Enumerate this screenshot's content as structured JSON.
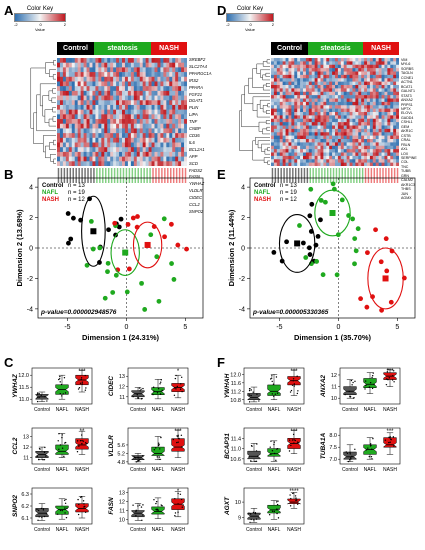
{
  "panels": {
    "A": "A",
    "B": "B",
    "C": "C",
    "D": "D",
    "E": "E",
    "F": "F"
  },
  "color_key": {
    "title": "Color Key",
    "xlabel": "Value",
    "ticks": [
      "-2",
      "0",
      "2"
    ],
    "colors": {
      "low": "#2e6fb0",
      "mid": "#f4f4f4",
      "high": "#c0181f"
    }
  },
  "groups": {
    "control": "Control",
    "steatosis": "steatosis",
    "nash": "NASH"
  },
  "group_colors": {
    "control": "#000000",
    "steatosis": "#1fa91f",
    "nash": "#e01010"
  },
  "heatmap_A": {
    "genes": [
      "SREBF2",
      "SLC27A4",
      "PPARGC1A",
      "IRS2",
      "PPARA",
      "FGF21",
      "DGAT1",
      "PLIN",
      "LIPA",
      "TNF",
      "CNBP",
      "CD36",
      "IL6",
      "BCL2A1",
      "APP",
      "SCD",
      "FADS2",
      "FASN",
      "YWHAZ",
      "VLDLR",
      "CIDEC",
      "CCL2",
      "SNPO2"
    ]
  },
  "heatmap_D": {
    "genes": [
      "VIM",
      "MYL6",
      "SORBS",
      "TAGLN",
      "CCNE1",
      "ACTN1",
      "BCAT1",
      "GALNT1",
      "STAT3",
      "ANXA2",
      "PRPS1",
      "NPTX",
      "ELOVL",
      "GADD4",
      "CSHL1",
      "GEM",
      "AKR1C",
      "CSTB",
      "CRAL",
      "FBLN",
      "AXL",
      "LOX",
      "SERPINE",
      "COL",
      "TNC",
      "TUBB",
      "GRN",
      "CALM2",
      "AKR1C3",
      "THBS",
      "JUN",
      "AGMX"
    ]
  },
  "pca_B": {
    "xlabel": "Dimension 1 (24.31%)",
    "ylabel": "Dimension 2 (13.68%)",
    "xticks": [
      "-5",
      "0",
      "5"
    ],
    "yticks": [
      "-4",
      "-2",
      "0",
      "2",
      "4"
    ],
    "legend": [
      {
        "label": "Control",
        "n": "n = 13"
      },
      {
        "label": "NAFL",
        "n": "n = 19"
      },
      {
        "label": "NASH",
        "n": "n = 12"
      }
    ],
    "pvalue": "p-value=0.000002948576"
  },
  "pca_E": {
    "xlabel": "Dimension 1 (35.70%)",
    "ylabel": "Dimension 2 (11.44%)",
    "xticks": [
      "-5",
      "0",
      "5"
    ],
    "yticks": [
      "-4",
      "-2",
      "0",
      "2",
      "4"
    ],
    "legend": [
      {
        "label": "Control",
        "n": "n = 13"
      },
      {
        "label": "NAFL",
        "n": "n = 19"
      },
      {
        "label": "NASH",
        "n": "n = 12"
      }
    ],
    "pvalue": "p-value=0.000005330365"
  },
  "box_groups": [
    "Control",
    "NAFL",
    "NASH"
  ],
  "boxplots_C": [
    {
      "gene": "YWHAZ",
      "yticks": [
        "11.0",
        "11.5",
        "12.0"
      ],
      "yrange": [
        10.8,
        12.3
      ],
      "sig": [
        "",
        "",
        "***"
      ],
      "stats": [
        [
          10.9,
          11.0,
          11.1,
          11.2,
          11.3
        ],
        [
          11.0,
          11.2,
          11.4,
          11.6,
          12.0
        ],
        [
          11.3,
          11.6,
          11.8,
          12.0,
          12.2
        ]
      ]
    },
    {
      "gene": "CIDEC",
      "yticks": [
        "11",
        "12",
        "13"
      ],
      "yrange": [
        10.3,
        13.8
      ],
      "sig": [
        "",
        "",
        "*"
      ],
      "stats": [
        [
          10.8,
          11.0,
          11.3,
          11.6,
          11.9
        ],
        [
          10.8,
          11.2,
          11.5,
          11.9,
          12.7
        ],
        [
          10.9,
          11.5,
          11.9,
          12.3,
          13.1
        ]
      ]
    },
    {
      "gene": "CCL2",
      "yticks": [
        "11",
        "12",
        "13"
      ],
      "yrange": [
        10.4,
        13.8
      ],
      "sig": [
        "",
        "",
        "**"
      ],
      "stats": [
        [
          10.8,
          11.0,
          11.3,
          11.6,
          12.0
        ],
        [
          11.0,
          11.3,
          11.6,
          12.2,
          13.3
        ],
        [
          11.3,
          11.8,
          12.2,
          12.8,
          13.5
        ]
      ]
    },
    {
      "gene": "VLDLR",
      "yticks": [
        "4.8",
        "5.2",
        "5.6"
      ],
      "yrange": [
        4.7,
        6.4
      ],
      "sig": [
        "",
        "",
        "***"
      ],
      "stats": [
        [
          4.8,
          4.9,
          5.0,
          5.1,
          5.2
        ],
        [
          4.9,
          5.1,
          5.2,
          5.5,
          6.0
        ],
        [
          5.0,
          5.3,
          5.5,
          5.9,
          6.3
        ]
      ]
    },
    {
      "gene": "SNPO2",
      "yticks": [
        "6.1",
        "6.2",
        "6.3"
      ],
      "yrange": [
        6.05,
        6.35
      ],
      "sig": [
        "",
        "",
        ""
      ],
      "stats": [
        [
          6.08,
          6.11,
          6.14,
          6.18,
          6.22
        ],
        [
          6.09,
          6.13,
          6.17,
          6.2,
          6.26
        ],
        [
          6.1,
          6.15,
          6.18,
          6.22,
          6.28
        ]
      ]
    },
    {
      "gene": "FASN",
      "yticks": [
        "10",
        "11",
        "12",
        "13"
      ],
      "yrange": [
        9.5,
        13.5
      ],
      "sig": [
        "",
        "",
        "*"
      ],
      "stats": [
        [
          9.9,
          10.3,
          10.7,
          11.0,
          11.8
        ],
        [
          10.1,
          10.6,
          10.9,
          11.4,
          12.4
        ],
        [
          10.3,
          11.1,
          11.7,
          12.3,
          13.1
        ]
      ]
    }
  ],
  "boxplots_F": [
    {
      "gene": "YWHAH",
      "yticks": [
        "10.8",
        "11.2",
        "11.6",
        "12.0"
      ],
      "yrange": [
        10.6,
        12.3
      ],
      "sig": [
        "",
        "",
        "***"
      ],
      "stats": [
        [
          10.7,
          10.8,
          10.9,
          11.1,
          11.4
        ],
        [
          10.8,
          11.0,
          11.2,
          11.5,
          12.0
        ],
        [
          11.0,
          11.5,
          11.7,
          11.9,
          12.2
        ]
      ]
    },
    {
      "gene": "ANXA2",
      "yticks": [
        "10",
        "11",
        "12"
      ],
      "yrange": [
        9.5,
        12.6
      ],
      "sig": [
        "",
        "",
        "***"
      ],
      "stats": [
        [
          10.0,
          10.3,
          10.6,
          11.0,
          11.6
        ],
        [
          10.4,
          10.9,
          11.2,
          11.7,
          12.2
        ],
        [
          11.0,
          11.6,
          11.9,
          12.2,
          12.5
        ]
      ]
    },
    {
      "gene": "BCAP31",
      "yticks": [
        "10.6",
        "11.0",
        "11.4"
      ],
      "yrange": [
        10.4,
        11.8
      ],
      "sig": [
        "",
        "",
        "***"
      ],
      "stats": [
        [
          10.5,
          10.6,
          10.7,
          10.9,
          11.2
        ],
        [
          10.5,
          10.7,
          10.8,
          11.0,
          11.3
        ],
        [
          10.8,
          11.0,
          11.2,
          11.4,
          11.7
        ]
      ]
    },
    {
      "gene": "TUBA1A",
      "yticks": [
        "7.0",
        "7.5",
        "8.0"
      ],
      "yrange": [
        6.8,
        8.3
      ],
      "sig": [
        "",
        "",
        "***"
      ],
      "stats": [
        [
          6.9,
          7.0,
          7.1,
          7.3,
          7.6
        ],
        [
          7.0,
          7.2,
          7.4,
          7.6,
          7.9
        ],
        [
          7.2,
          7.5,
          7.6,
          7.9,
          8.1
        ]
      ]
    },
    {
      "gene": "AGXT",
      "yticks": [
        "9",
        "10"
      ],
      "yrange": [
        8.6,
        10.9
      ],
      "sig": [
        "",
        "",
        "****"
      ],
      "stats": [
        [
          8.7,
          8.9,
          9.1,
          9.3,
          9.6
        ],
        [
          8.9,
          9.3,
          9.5,
          9.8,
          10.1
        ],
        [
          9.6,
          9.9,
          10.0,
          10.2,
          10.6
        ]
      ]
    }
  ]
}
